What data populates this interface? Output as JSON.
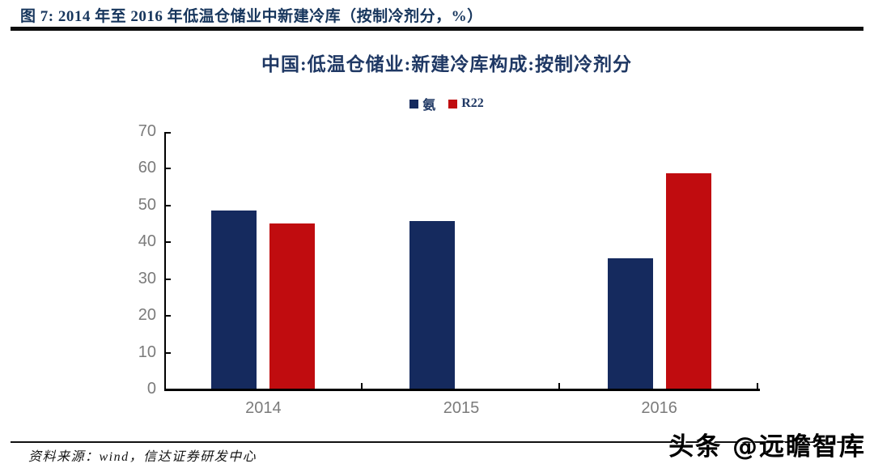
{
  "figure": {
    "caption": "图 7:  2014 年至 2016 年低温仓储业中新建冷库（按制冷剂分，%）"
  },
  "chart_data": {
    "type": "bar",
    "title": "中国:低温仓储业:新建冷库构成:按制冷剂分",
    "categories": [
      "2014",
      "2015",
      "2016"
    ],
    "series": [
      {
        "name": "氨",
        "color": "#152A5E",
        "values": [
          48.5,
          45.5,
          35.5
        ]
      },
      {
        "name": "R22",
        "color": "#C00C0F",
        "values": [
          45.0,
          0,
          58.5
        ]
      }
    ],
    "ylim": [
      0,
      70
    ],
    "ytick_step": 10,
    "ytick_labels": [
      "0",
      "10",
      "20",
      "30",
      "40",
      "50",
      "60",
      "70"
    ],
    "xlabel": "",
    "ylabel": "",
    "unit": "%",
    "grid": false,
    "legend_position": "top-center"
  },
  "footer": {
    "source": "资料来源：wind，信达证券研发中心",
    "watermark": "头条 @远瞻智库"
  },
  "colors": {
    "header_navy": "#17365D",
    "title_navy": "#1F3864",
    "axis_label_gray": "#7B7B7B",
    "rule_black": "#0D0D0D"
  }
}
